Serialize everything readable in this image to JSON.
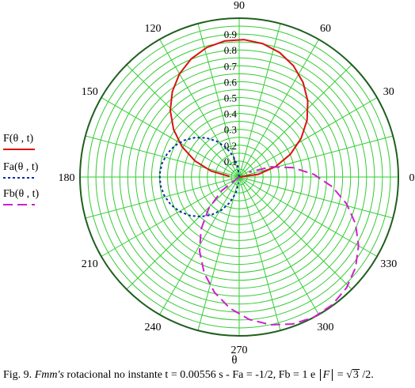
{
  "chart_data": {
    "type": "polar-line",
    "title": "",
    "xlabel": "θ",
    "r_range": [
      0,
      1
    ],
    "r_ticks": [
      "0",
      "0.1",
      "0.2",
      "0.3",
      "0.4",
      "0.5",
      "0.6",
      "0.7",
      "0.8",
      "0.9",
      "1"
    ],
    "angle_ticks": [
      "0",
      "30",
      "60",
      "90",
      "120",
      "150",
      "180",
      "210",
      "240",
      "270",
      "300",
      "330"
    ],
    "grid": true,
    "legend_position": "left",
    "series": [
      {
        "name": "F(θ , t)",
        "color": "#dd1111",
        "style": "solid",
        "r_formula": "0.866·|cos(θ + 90°)|",
        "theta_deg_range": [
          0,
          180
        ]
      },
      {
        "name": "Fa(θ , t)",
        "color": "#0a2aa0",
        "style": "dotted",
        "r_formula": "0.5·|cos θ|",
        "theta_deg_range": [
          90,
          270
        ]
      },
      {
        "name": "Fb(θ , t)",
        "color": "#d01fd0",
        "style": "dashed",
        "r_formula": "1·|cos(θ − 120°)|",
        "theta_deg_range": [
          210,
          390
        ]
      }
    ]
  },
  "caption": {
    "prefix": "Fig. 9. ",
    "italic": "Fmm's",
    "text": " rotacional no instante t = 0.00556 s - Fa = -1/2, Fb = 1 e ",
    "abs_symbol": "F",
    "equals": " = ",
    "radicand": "3",
    "suffix": " /2."
  }
}
